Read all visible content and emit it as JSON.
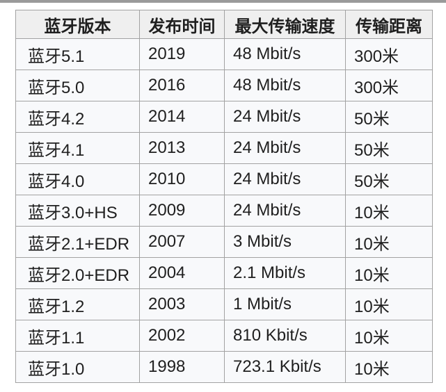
{
  "colors": {
    "page_background": "#ffffff",
    "top_bar": "#9a9a9a",
    "header_background": "#efefef",
    "row_background": "#f8f9fb",
    "grid_border": "#a2a2a2",
    "text": "#1f1f1f"
  },
  "chart_data": {
    "type": "table",
    "title": "",
    "columns": [
      "蓝牙版本",
      "发布时间",
      "最大传输速度",
      "传输距离"
    ],
    "rows": [
      [
        "蓝牙5.1",
        "2019",
        "48 Mbit/s",
        "300米"
      ],
      [
        "蓝牙5.0",
        "2016",
        "48 Mbit/s",
        "300米"
      ],
      [
        "蓝牙4.2",
        "2014",
        "24 Mbit/s",
        "50米"
      ],
      [
        "蓝牙4.1",
        "2013",
        "24 Mbit/s",
        "50米"
      ],
      [
        "蓝牙4.0",
        "2010",
        "24 Mbit/s",
        "50米"
      ],
      [
        "蓝牙3.0+HS",
        "2009",
        "24 Mbit/s",
        "10米"
      ],
      [
        "蓝牙2.1+EDR",
        "2007",
        "3 Mbit/s",
        "10米"
      ],
      [
        "蓝牙2.0+EDR",
        "2004",
        "2.1 Mbit/s",
        "10米"
      ],
      [
        "蓝牙1.2",
        "2003",
        "1 Mbit/s",
        "10米"
      ],
      [
        "蓝牙1.1",
        "2002",
        "810 Kbit/s",
        "10米"
      ],
      [
        "蓝牙1.0",
        "1998",
        "723.1 Kbit/s",
        "10米"
      ]
    ]
  }
}
